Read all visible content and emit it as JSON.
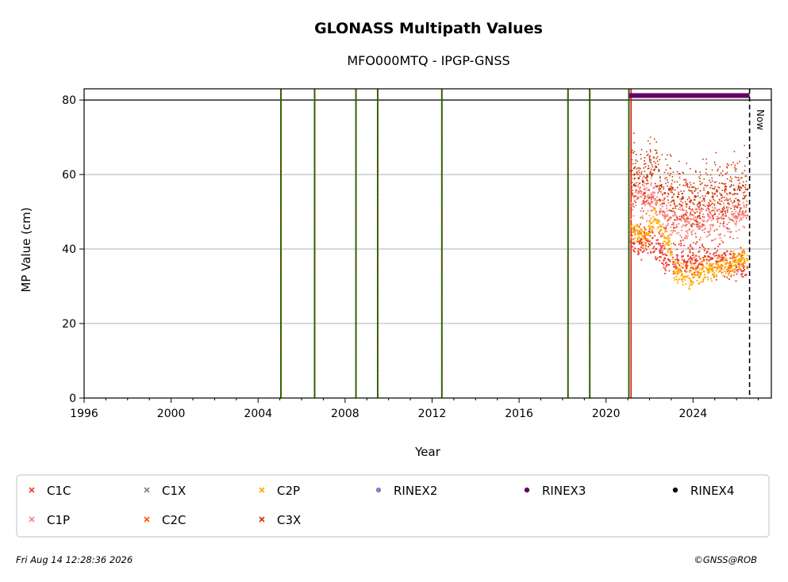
{
  "title": "GLONASS Multipath Values",
  "subtitle": "MFO000MTQ - IPGP-GNSS",
  "footer": {
    "timestamp": "Fri Aug 14 12:28:36 2026",
    "credit": "©GNSS@ROB"
  },
  "now_label": "Now",
  "colors": {
    "C1C": "#ee3b2e",
    "C1P": "#ff7f7f",
    "C1X": "#808080",
    "C2C": "#ff5500",
    "C2P": "#ffaa00",
    "C3X": "#cc3300",
    "RINEX2": "#8a7fc2",
    "RINEX3": "#660066",
    "RINEX4": "#1a001a",
    "event_line": "#008000",
    "event_dash": "#dd0000",
    "grid": "#b0b0b0"
  },
  "legend": [
    {
      "label": "C1C",
      "marker": "x",
      "color": "#ee3b2e"
    },
    {
      "label": "C1X",
      "marker": "x",
      "color": "#808080"
    },
    {
      "label": "C2P",
      "marker": "x",
      "color": "#ffaa00"
    },
    {
      "label": "RINEX2",
      "marker": "dot",
      "color": "#8a7fc2"
    },
    {
      "label": "RINEX3",
      "marker": "dot",
      "color": "#660066"
    },
    {
      "label": "RINEX4",
      "marker": "dot",
      "color": "#1a001a"
    },
    {
      "label": "C1P",
      "marker": "x",
      "color": "#ff7f7f"
    },
    {
      "label": "C2C",
      "marker": "x",
      "color": "#ff5500"
    },
    {
      "label": "C3X",
      "marker": "x",
      "color": "#cc3300"
    }
  ],
  "chart_data": {
    "type": "scatter",
    "title": "GLONASS Multipath Values",
    "subtitle": "MFO000MTQ - IPGP-GNSS",
    "xlabel": "Year",
    "ylabel": "MP Value (cm)",
    "xlim": [
      1996,
      2027.6
    ],
    "ylim": [
      0,
      83
    ],
    "xticks": [
      1996,
      2000,
      2004,
      2008,
      2012,
      2016,
      2020,
      2024
    ],
    "yticks": [
      0,
      20,
      40,
      60,
      80
    ],
    "grid": "horizontal",
    "legend_placement": "below",
    "reference_hline": 80,
    "event_lines": [
      2005.05,
      2006.6,
      2008.5,
      2009.5,
      2012.45,
      2018.25,
      2019.25,
      2021.05
    ],
    "data_start_line": 2021.15,
    "now_line": 2026.6,
    "rinex_bars": [
      {
        "name": "RINEX3",
        "start": 2021.05,
        "end": 2026.6,
        "y": 81.2
      }
    ],
    "series": [
      {
        "name": "C1C",
        "x": [
          2021.15,
          2021.3,
          2021.5,
          2021.7,
          2021.9,
          2022.1,
          2022.3,
          2022.5,
          2022.7,
          2022.9,
          2023.1,
          2023.3,
          2023.5,
          2023.7,
          2023.9,
          2024.1,
          2024.3,
          2024.5,
          2024.7,
          2024.9,
          2025.1,
          2025.3,
          2025.5,
          2025.7,
          2025.9,
          2026.1,
          2026.3,
          2026.5
        ],
        "y": [
          42,
          41.5,
          42,
          41,
          42.5,
          41.5,
          40,
          39,
          37.5,
          37,
          36.5,
          37,
          38,
          36.5,
          37.5,
          37,
          36,
          37,
          38,
          37.5,
          36.5,
          37,
          36,
          35.5,
          36.5,
          36,
          35.5,
          35
        ]
      },
      {
        "name": "C1P",
        "x": [
          2021.15,
          2021.3,
          2021.5,
          2021.7,
          2021.9,
          2022.1,
          2022.3,
          2022.5,
          2022.7,
          2022.9,
          2023.1,
          2023.3,
          2023.5,
          2023.7,
          2023.9,
          2024.1,
          2024.3,
          2024.5,
          2024.7,
          2024.9,
          2025.1,
          2025.3,
          2025.5,
          2025.7,
          2025.9,
          2026.1,
          2026.3,
          2026.5
        ],
        "y": [
          55,
          54,
          55.5,
          54.5,
          53,
          54,
          52,
          50,
          48.5,
          48,
          47,
          48,
          49,
          47.5,
          48,
          48.5,
          47,
          47.5,
          49,
          48.5,
          48,
          48.5,
          49,
          48,
          48.5,
          49,
          49.5,
          49
        ]
      },
      {
        "name": "C2P",
        "x": [
          2021.15,
          2021.3,
          2021.5,
          2021.7,
          2021.9,
          2022.1,
          2022.3,
          2022.5,
          2022.7,
          2022.9,
          2023.1,
          2023.3,
          2023.5,
          2023.7,
          2023.9,
          2024.1,
          2024.3,
          2024.5,
          2024.7,
          2024.9,
          2025.1,
          2025.3,
          2025.5,
          2025.7,
          2025.9,
          2026.1,
          2026.3,
          2026.5
        ],
        "y": [
          46,
          45,
          44,
          43.5,
          44,
          47,
          50,
          45,
          43,
          42,
          34,
          33.5,
          33,
          32.5,
          31.5,
          33,
          33.5,
          34,
          34.5,
          34,
          35,
          35.5,
          36,
          36,
          36.5,
          37,
          37.5,
          37
        ]
      },
      {
        "name": "C3X",
        "x": [
          2021.15,
          2021.3,
          2021.5,
          2021.7,
          2021.9,
          2022.1,
          2022.3,
          2022.5,
          2022.7,
          2022.9,
          2023.1,
          2023.3,
          2023.5,
          2023.7,
          2023.9,
          2024.1,
          2024.3,
          2024.5,
          2024.7,
          2024.9,
          2025.1,
          2025.3,
          2025.5,
          2025.7,
          2025.9,
          2026.1,
          2026.3,
          2026.5
        ],
        "y": [
          61,
          60,
          59,
          58,
          59.5,
          60,
          62,
          57,
          55,
          56,
          53,
          54,
          53.5,
          52,
          53,
          54,
          52.5,
          53.5,
          55,
          54,
          55.5,
          54.5,
          56,
          55,
          56,
          56.5,
          57,
          56
        ]
      }
    ]
  }
}
